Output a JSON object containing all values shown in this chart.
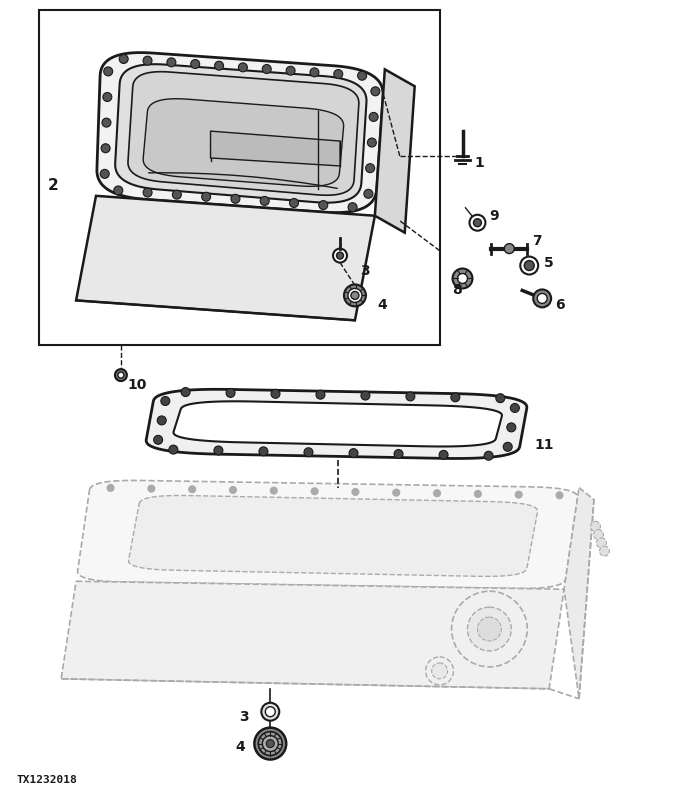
{
  "bg_color": "#ffffff",
  "line_color": "#1a1a1a",
  "gray_line": "#aaaaaa",
  "light_fill": "#f5f5f5",
  "mid_fill": "#e8e8e8",
  "dark_fill": "#cccccc",
  "watermark": "TX1232018",
  "figsize": [
    6.83,
    7.96
  ],
  "dpi": 100
}
